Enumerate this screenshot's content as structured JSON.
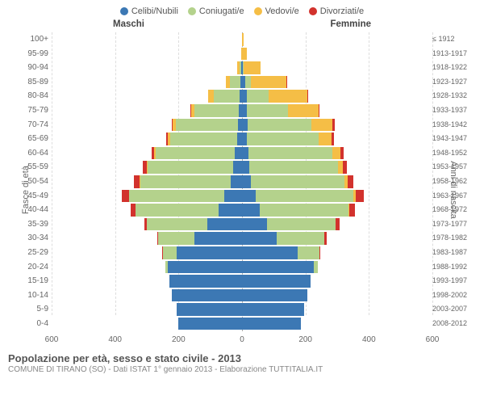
{
  "legend": [
    {
      "label": "Celibi/Nubili",
      "color": "#3c78b4"
    },
    {
      "label": "Coniugati/e",
      "color": "#b4d28c"
    },
    {
      "label": "Vedovi/e",
      "color": "#f5be46"
    },
    {
      "label": "Divorziati/e",
      "color": "#d2322d"
    }
  ],
  "header_left": "Maschi",
  "header_right": "Femmine",
  "y_left_title": "Fasce di età",
  "y_right_title": "Anni di nascita",
  "title": "Popolazione per età, sesso e stato civile - 2013",
  "subtitle": "COMUNE DI TIRANO (SO) - Dati ISTAT 1° gennaio 2013 - Elaborazione TUTTITALIA.IT",
  "colors": {
    "celibi": "#3c78b4",
    "coniugati": "#b4d28c",
    "vedovi": "#f5be46",
    "divorziati": "#d2322d",
    "grid": "#dddddd",
    "centerline": "#aaaaaa",
    "background": "#ffffff"
  },
  "x_axis": {
    "max": 600,
    "ticks": [
      600,
      400,
      200,
      0,
      200,
      400,
      600
    ]
  },
  "age_groups": [
    {
      "age": "100+",
      "birth": "≤ 1912",
      "m": [
        0,
        0,
        0,
        0
      ],
      "f": [
        0,
        0,
        4,
        0
      ]
    },
    {
      "age": "95-99",
      "birth": "1913-1917",
      "m": [
        1,
        0,
        2,
        0
      ],
      "f": [
        0,
        0,
        14,
        0
      ]
    },
    {
      "age": "90-94",
      "birth": "1918-1922",
      "m": [
        3,
        5,
        7,
        0
      ],
      "f": [
        2,
        3,
        53,
        0
      ]
    },
    {
      "age": "85-89",
      "birth": "1923-1927",
      "m": [
        4,
        33,
        13,
        0
      ],
      "f": [
        9,
        18,
        112,
        1
      ]
    },
    {
      "age": "80-84",
      "birth": "1928-1932",
      "m": [
        8,
        82,
        16,
        0
      ],
      "f": [
        14,
        70,
        121,
        2
      ]
    },
    {
      "age": "75-79",
      "birth": "1933-1937",
      "m": [
        9,
        140,
        12,
        1
      ],
      "f": [
        15,
        130,
        96,
        3
      ]
    },
    {
      "age": "70-74",
      "birth": "1938-1942",
      "m": [
        14,
        195,
        10,
        2
      ],
      "f": [
        18,
        200,
        68,
        6
      ]
    },
    {
      "age": "65-69",
      "birth": "1943-1947",
      "m": [
        16,
        210,
        8,
        4
      ],
      "f": [
        16,
        225,
        40,
        8
      ]
    },
    {
      "age": "60-64",
      "birth": "1948-1952",
      "m": [
        22,
        250,
        5,
        8
      ],
      "f": [
        20,
        265,
        25,
        10
      ]
    },
    {
      "age": "55-59",
      "birth": "1953-1957",
      "m": [
        28,
        270,
        3,
        12
      ],
      "f": [
        22,
        280,
        15,
        13
      ]
    },
    {
      "age": "50-54",
      "birth": "1958-1962",
      "m": [
        35,
        285,
        2,
        18
      ],
      "f": [
        28,
        295,
        10,
        18
      ]
    },
    {
      "age": "45-49",
      "birth": "1963-1967",
      "m": [
        55,
        300,
        1,
        22
      ],
      "f": [
        42,
        310,
        6,
        25
      ]
    },
    {
      "age": "40-44",
      "birth": "1968-1972",
      "m": [
        75,
        260,
        0,
        15
      ],
      "f": [
        55,
        280,
        3,
        18
      ]
    },
    {
      "age": "35-39",
      "birth": "1973-1977",
      "m": [
        110,
        190,
        0,
        8
      ],
      "f": [
        80,
        215,
        1,
        12
      ]
    },
    {
      "age": "30-34",
      "birth": "1978-1982",
      "m": [
        150,
        115,
        0,
        3
      ],
      "f": [
        110,
        150,
        0,
        6
      ]
    },
    {
      "age": "25-29",
      "birth": "1983-1987",
      "m": [
        205,
        45,
        0,
        1
      ],
      "f": [
        175,
        70,
        0,
        2
      ]
    },
    {
      "age": "20-24",
      "birth": "1988-1992",
      "m": [
        235,
        6,
        0,
        0
      ],
      "f": [
        225,
        15,
        0,
        0
      ]
    },
    {
      "age": "15-19",
      "birth": "1993-1997",
      "m": [
        230,
        0,
        0,
        0
      ],
      "f": [
        215,
        0,
        0,
        0
      ]
    },
    {
      "age": "10-14",
      "birth": "1998-2002",
      "m": [
        220,
        0,
        0,
        0
      ],
      "f": [
        205,
        0,
        0,
        0
      ]
    },
    {
      "age": "5-9",
      "birth": "2003-2007",
      "m": [
        205,
        0,
        0,
        0
      ],
      "f": [
        195,
        0,
        0,
        0
      ]
    },
    {
      "age": "0-4",
      "birth": "2008-2012",
      "m": [
        200,
        0,
        0,
        0
      ],
      "f": [
        185,
        0,
        0,
        0
      ]
    }
  ],
  "fontsize": {
    "legend": 11,
    "axis_label": 10,
    "title": 13,
    "subtitle": 10
  }
}
